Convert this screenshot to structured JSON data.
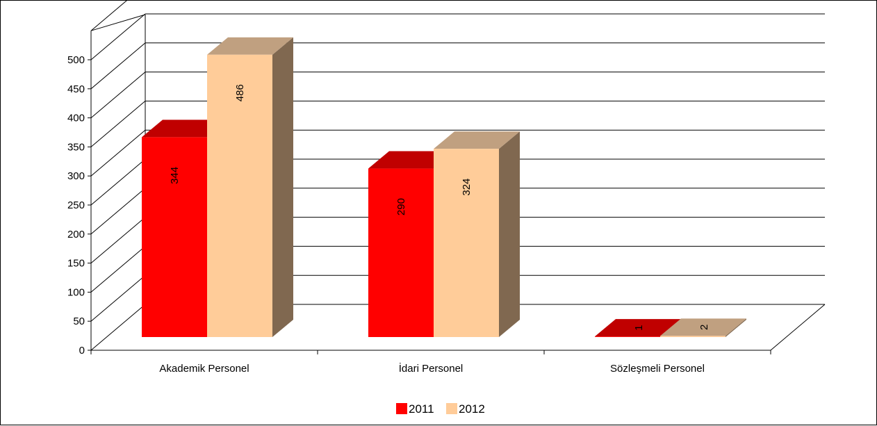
{
  "chart_data": {
    "type": "bar",
    "categories": [
      "Akademik Personel",
      "İdari Personel",
      "Sözleşmeli Personel"
    ],
    "series": [
      {
        "name": "2011",
        "values": [
          344,
          290,
          1
        ],
        "color": "#ff0000",
        "top_color": "#c00000",
        "side_color": "#8b0000"
      },
      {
        "name": "2012",
        "values": [
          486,
          324,
          2
        ],
        "color": "#ffcc99",
        "top_color": "#c0a080",
        "side_color": "#806850"
      }
    ],
    "y_ticks": [
      "0",
      "50",
      "100",
      "150",
      "200",
      "250",
      "300",
      "350",
      "400",
      "450",
      "500"
    ],
    "ylim": [
      0,
      550
    ],
    "grid": true,
    "legend_position": "bottom",
    "data_labels": true,
    "style": "3d-clustered-column"
  }
}
